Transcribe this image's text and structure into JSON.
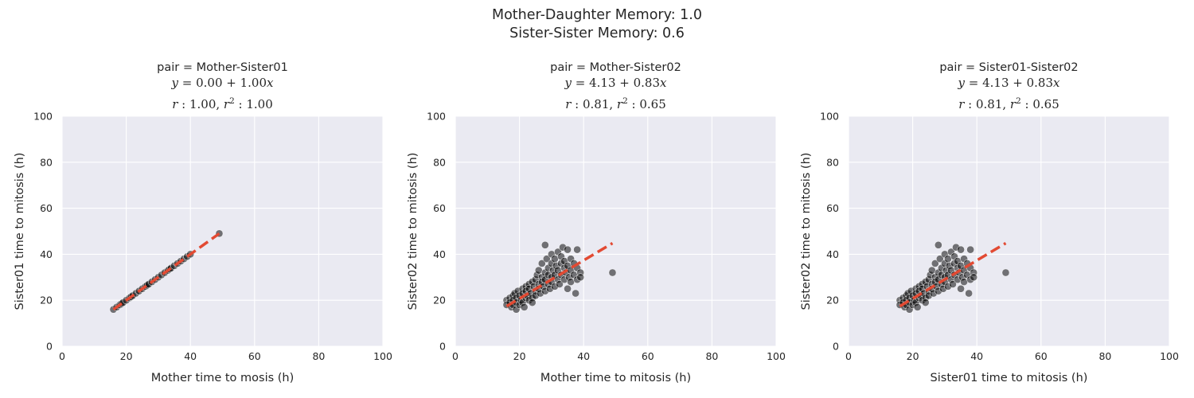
{
  "suptitle": [
    "Mother-Daughter Memory: 1.0",
    "Sister-Sister Memory: 0.6"
  ],
  "colors": {
    "panel_bg": "#eaeaf2",
    "grid": "#ffffff",
    "points": "#000000",
    "fit": "#e24a33"
  },
  "chart_data": [
    {
      "type": "scatter",
      "title": "pair = Mother-Sister01",
      "equation": {
        "y": "y",
        "x": "x",
        "intercept": "0.00",
        "slope": "1.00"
      },
      "stats": {
        "r": "1.00",
        "r2": "1.00"
      },
      "xlabel": "Mother time to mosis (h)",
      "ylabel": "Sister01 time to mitosis (h)",
      "xlim": [
        0,
        100
      ],
      "ylim": [
        0,
        100
      ],
      "xticks": [
        "0",
        "20",
        "40",
        "60",
        "80",
        "100"
      ],
      "yticks": [
        "0",
        "20",
        "40",
        "60",
        "80",
        "100"
      ],
      "grid": true,
      "fit": {
        "intercept": 0.0,
        "slope": 1.0,
        "x_range": [
          16,
          49
        ]
      },
      "points": [
        [
          16,
          16
        ],
        [
          17,
          17
        ],
        [
          18,
          18
        ],
        [
          18.5,
          18.5
        ],
        [
          19,
          19
        ],
        [
          20,
          20
        ],
        [
          21,
          21
        ],
        [
          21.5,
          21.5
        ],
        [
          22,
          22
        ],
        [
          23,
          23
        ],
        [
          24,
          24
        ],
        [
          25,
          25
        ],
        [
          26,
          26
        ],
        [
          26.5,
          26.5
        ],
        [
          27,
          27
        ],
        [
          28,
          28
        ],
        [
          29,
          29
        ],
        [
          30,
          30
        ],
        [
          31,
          31
        ],
        [
          32,
          32
        ],
        [
          33,
          33
        ],
        [
          33.5,
          33.5
        ],
        [
          34,
          34
        ],
        [
          35,
          35
        ],
        [
          36,
          36
        ],
        [
          37,
          37
        ],
        [
          38,
          38
        ],
        [
          39,
          39
        ],
        [
          40,
          40
        ],
        [
          49,
          49
        ]
      ]
    },
    {
      "type": "scatter",
      "title": "pair = Mother-Sister02",
      "equation": {
        "y": "y",
        "x": "x",
        "intercept": "4.13",
        "slope": "0.83"
      },
      "stats": {
        "r": "0.81",
        "r2": "0.65"
      },
      "xlabel": "Mother time to mitosis (h)",
      "ylabel": "Sister02 time to mitosis (h)",
      "xlim": [
        0,
        100
      ],
      "ylim": [
        0,
        100
      ],
      "xticks": [
        "0",
        "20",
        "40",
        "60",
        "80",
        "100"
      ],
      "yticks": [
        "0",
        "20",
        "40",
        "60",
        "80",
        "100"
      ],
      "grid": true,
      "fit": {
        "intercept": 4.13,
        "slope": 0.83,
        "x_range": [
          16,
          49
        ]
      },
      "points": [
        [
          16,
          20
        ],
        [
          16,
          18
        ],
        [
          17,
          21
        ],
        [
          17,
          19
        ],
        [
          17.5,
          17
        ],
        [
          18,
          22
        ],
        [
          18,
          20
        ],
        [
          18,
          18
        ],
        [
          18.5,
          23
        ],
        [
          19,
          16
        ],
        [
          19,
          21
        ],
        [
          19,
          19
        ],
        [
          19.5,
          24
        ],
        [
          20,
          22
        ],
        [
          20,
          18
        ],
        [
          20.5,
          20
        ],
        [
          21,
          25
        ],
        [
          21,
          23
        ],
        [
          21,
          19
        ],
        [
          21.5,
          17
        ],
        [
          22,
          21
        ],
        [
          22,
          26
        ],
        [
          22,
          24
        ],
        [
          22.5,
          22
        ],
        [
          23,
          20
        ],
        [
          23,
          27
        ],
        [
          23,
          25
        ],
        [
          23.5,
          23
        ],
        [
          24,
          28
        ],
        [
          24,
          21
        ],
        [
          24,
          19
        ],
        [
          24.5,
          26
        ],
        [
          25,
          24
        ],
        [
          25,
          29
        ],
        [
          25,
          22
        ],
        [
          25.5,
          31
        ],
        [
          26,
          27
        ],
        [
          26,
          25
        ],
        [
          26,
          33
        ],
        [
          26.5,
          23
        ],
        [
          27,
          36
        ],
        [
          27,
          30
        ],
        [
          27,
          28
        ],
        [
          27.5,
          26
        ],
        [
          28,
          44
        ],
        [
          28,
          32
        ],
        [
          28,
          24
        ],
        [
          28,
          29
        ],
        [
          28.5,
          38
        ],
        [
          29,
          27
        ],
        [
          29,
          34
        ],
        [
          29,
          31
        ],
        [
          29.5,
          25
        ],
        [
          30,
          36
        ],
        [
          30,
          40
        ],
        [
          30,
          30
        ],
        [
          30,
          28
        ],
        [
          30.5,
          33
        ],
        [
          31,
          26
        ],
        [
          31,
          38
        ],
        [
          31,
          31
        ],
        [
          31.5,
          35
        ],
        [
          32,
          29
        ],
        [
          32,
          41
        ],
        [
          32,
          33
        ],
        [
          32.5,
          27
        ],
        [
          33,
          36
        ],
        [
          33,
          31
        ],
        [
          33,
          39
        ],
        [
          33.5,
          43
        ],
        [
          34,
          34
        ],
        [
          34,
          29
        ],
        [
          34,
          37
        ],
        [
          34.5,
          32
        ],
        [
          35,
          25
        ],
        [
          35,
          35
        ],
        [
          35,
          42
        ],
        [
          35.5,
          30
        ],
        [
          36,
          33
        ],
        [
          36,
          38
        ],
        [
          36,
          28
        ],
        [
          37,
          36
        ],
        [
          37,
          31
        ],
        [
          37.5,
          23
        ],
        [
          38,
          42
        ],
        [
          38,
          34
        ],
        [
          38,
          29
        ],
        [
          39,
          32
        ],
        [
          39,
          30
        ],
        [
          49,
          32
        ]
      ]
    },
    {
      "type": "scatter",
      "title": "pair = Sister01-Sister02",
      "equation": {
        "y": "y",
        "x": "x",
        "intercept": "4.13",
        "slope": "0.83"
      },
      "stats": {
        "r": "0.81",
        "r2": "0.65"
      },
      "xlabel": "Sister01 time to mitosis (h)",
      "ylabel": "Sister02 time to mitosis (h)",
      "xlim": [
        0,
        100
      ],
      "ylim": [
        0,
        100
      ],
      "xticks": [
        "0",
        "20",
        "40",
        "60",
        "80",
        "100"
      ],
      "yticks": [
        "0",
        "20",
        "40",
        "60",
        "80",
        "100"
      ],
      "grid": true,
      "fit": {
        "intercept": 4.13,
        "slope": 0.83,
        "x_range": [
          16,
          49
        ]
      },
      "points": [
        [
          16,
          20
        ],
        [
          16,
          18
        ],
        [
          17,
          21
        ],
        [
          17,
          19
        ],
        [
          17.5,
          17
        ],
        [
          18,
          22
        ],
        [
          18,
          20
        ],
        [
          18,
          18
        ],
        [
          18.5,
          23
        ],
        [
          19,
          16
        ],
        [
          19,
          21
        ],
        [
          19,
          19
        ],
        [
          19.5,
          24
        ],
        [
          20,
          22
        ],
        [
          20,
          18
        ],
        [
          20.5,
          20
        ],
        [
          21,
          25
        ],
        [
          21,
          23
        ],
        [
          21,
          19
        ],
        [
          21.5,
          17
        ],
        [
          22,
          21
        ],
        [
          22,
          26
        ],
        [
          22,
          24
        ],
        [
          22.5,
          22
        ],
        [
          23,
          20
        ],
        [
          23,
          27
        ],
        [
          23,
          25
        ],
        [
          23.5,
          23
        ],
        [
          24,
          28
        ],
        [
          24,
          21
        ],
        [
          24,
          19
        ],
        [
          24.5,
          26
        ],
        [
          25,
          24
        ],
        [
          25,
          29
        ],
        [
          25,
          22
        ],
        [
          25.5,
          31
        ],
        [
          26,
          27
        ],
        [
          26,
          25
        ],
        [
          26,
          33
        ],
        [
          26.5,
          23
        ],
        [
          27,
          36
        ],
        [
          27,
          30
        ],
        [
          27,
          28
        ],
        [
          27.5,
          26
        ],
        [
          28,
          44
        ],
        [
          28,
          32
        ],
        [
          28,
          24
        ],
        [
          28,
          29
        ],
        [
          28.5,
          38
        ],
        [
          29,
          27
        ],
        [
          29,
          34
        ],
        [
          29,
          31
        ],
        [
          29.5,
          25
        ],
        [
          30,
          36
        ],
        [
          30,
          40
        ],
        [
          30,
          30
        ],
        [
          30,
          28
        ],
        [
          30.5,
          33
        ],
        [
          31,
          26
        ],
        [
          31,
          38
        ],
        [
          31,
          31
        ],
        [
          31.5,
          35
        ],
        [
          32,
          29
        ],
        [
          32,
          41
        ],
        [
          32,
          33
        ],
        [
          32.5,
          27
        ],
        [
          33,
          36
        ],
        [
          33,
          31
        ],
        [
          33,
          39
        ],
        [
          33.5,
          43
        ],
        [
          34,
          34
        ],
        [
          34,
          29
        ],
        [
          34,
          37
        ],
        [
          34.5,
          32
        ],
        [
          35,
          25
        ],
        [
          35,
          35
        ],
        [
          35,
          42
        ],
        [
          35.5,
          30
        ],
        [
          36,
          33
        ],
        [
          36,
          38
        ],
        [
          36,
          28
        ],
        [
          37,
          36
        ],
        [
          37,
          31
        ],
        [
          37.5,
          23
        ],
        [
          38,
          42
        ],
        [
          38,
          34
        ],
        [
          38,
          29
        ],
        [
          39,
          32
        ],
        [
          39,
          30
        ],
        [
          49,
          32
        ]
      ]
    }
  ]
}
